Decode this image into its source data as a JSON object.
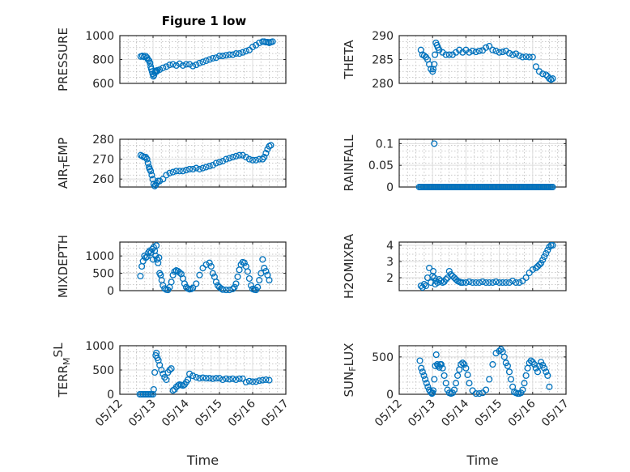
{
  "figure": {
    "title": "Figure 1 low",
    "marker_color": "#0072BD",
    "x_tick_labels": [
      "05/12",
      "05/13",
      "05/14",
      "05/15",
      "05/16",
      "05/17"
    ]
  },
  "chart_data": [
    {
      "type": "scatter",
      "id": "pressure",
      "title": "Figure 1 low",
      "ylabel": "PRESSURE",
      "ylabel_parts": [
        {
          "t": "PRESSURE"
        }
      ],
      "xlabel": "",
      "ylim": [
        600,
        1000
      ],
      "yticks": [
        600,
        800,
        1000
      ],
      "x_domain": [
        0,
        5
      ],
      "x": [
        0.63,
        0.68,
        0.73,
        0.78,
        0.82,
        0.85,
        0.88,
        0.91,
        0.93,
        0.95,
        0.97,
        0.99,
        1.01,
        1.03,
        1.05,
        1.07,
        1.09,
        1.11,
        1.13,
        1.2,
        1.3,
        1.4,
        1.5,
        1.6,
        1.7,
        1.8,
        1.9,
        2.0,
        2.1,
        2.2,
        2.3,
        2.4,
        2.5,
        2.6,
        2.7,
        2.8,
        2.9,
        3.0,
        3.1,
        3.2,
        3.3,
        3.4,
        3.5,
        3.6,
        3.7,
        3.8,
        3.9,
        4.0,
        4.1,
        4.2,
        4.3,
        4.35,
        4.4,
        4.45,
        4.5,
        4.55,
        4.6
      ],
      "y": [
        825,
        830,
        822,
        828,
        815,
        800,
        790,
        770,
        740,
        720,
        700,
        680,
        660,
        670,
        690,
        700,
        705,
        700,
        710,
        715,
        730,
        740,
        755,
        760,
        750,
        765,
        750,
        760,
        760,
        745,
        755,
        770,
        780,
        790,
        800,
        810,
        815,
        830,
        830,
        835,
        840,
        840,
        850,
        850,
        860,
        870,
        880,
        905,
        920,
        940,
        950,
        950,
        945,
        945,
        940,
        945,
        950
      ]
    },
    {
      "type": "scatter",
      "id": "theta",
      "ylabel": "THETA",
      "ylabel_parts": [
        {
          "t": "THETA"
        }
      ],
      "xlabel": "",
      "ylim": [
        280,
        290
      ],
      "yticks": [
        280,
        285,
        290
      ],
      "x_domain": [
        0,
        5
      ],
      "x": [
        0.65,
        0.7,
        0.75,
        0.8,
        0.85,
        0.9,
        0.95,
        1.0,
        1.02,
        1.05,
        1.07,
        1.1,
        1.13,
        1.16,
        1.2,
        1.3,
        1.4,
        1.5,
        1.6,
        1.7,
        1.8,
        1.9,
        2.0,
        2.1,
        2.2,
        2.3,
        2.4,
        2.5,
        2.6,
        2.7,
        2.8,
        2.9,
        3.0,
        3.1,
        3.2,
        3.3,
        3.4,
        3.5,
        3.6,
        3.7,
        3.8,
        3.9,
        4.0,
        4.1,
        4.2,
        4.3,
        4.4,
        4.45,
        4.5,
        4.55,
        4.6
      ],
      "y": [
        287,
        286,
        285.8,
        285.5,
        285,
        284,
        283,
        282.5,
        283,
        284,
        286,
        288.5,
        288,
        287.5,
        287,
        286.5,
        286,
        286,
        286,
        286.5,
        287,
        286.5,
        287,
        286.5,
        286.8,
        286.6,
        286.8,
        286.9,
        287.5,
        287.8,
        287,
        286.8,
        286.5,
        286.6,
        286.8,
        286.3,
        286,
        286.2,
        285.8,
        285.5,
        285.6,
        285.5,
        285.5,
        283.5,
        282.5,
        282,
        281.8,
        281.5,
        281,
        280.8,
        281
      ]
    },
    {
      "type": "scatter",
      "id": "air_temp",
      "ylabel": "AIR_TEMP",
      "ylabel_parts": [
        {
          "t": "AIR"
        },
        {
          "t": "T",
          "sub": true
        },
        {
          "t": "EMP"
        }
      ],
      "xlabel": "",
      "ylim": [
        256,
        280
      ],
      "yticks": [
        260,
        270,
        280
      ],
      "x_domain": [
        0,
        5
      ],
      "x": [
        0.63,
        0.68,
        0.73,
        0.78,
        0.82,
        0.85,
        0.88,
        0.9,
        0.93,
        0.96,
        0.99,
        1.02,
        1.05,
        1.08,
        1.11,
        1.15,
        1.2,
        1.3,
        1.4,
        1.5,
        1.6,
        1.7,
        1.8,
        1.9,
        2.0,
        2.1,
        2.2,
        2.3,
        2.4,
        2.5,
        2.6,
        2.7,
        2.8,
        2.9,
        3.0,
        3.1,
        3.2,
        3.3,
        3.4,
        3.5,
        3.6,
        3.7,
        3.8,
        3.9,
        4.0,
        4.1,
        4.2,
        4.3,
        4.35,
        4.4,
        4.45,
        4.5,
        4.55
      ],
      "y": [
        272,
        271.5,
        271,
        271,
        270,
        268,
        266,
        265,
        264,
        262,
        260,
        257.5,
        256.5,
        257,
        258,
        259,
        259,
        260,
        262,
        263,
        263.5,
        264,
        264,
        264,
        264.5,
        265,
        265,
        265.5,
        265,
        265.5,
        266,
        266.5,
        267,
        268,
        268.5,
        269,
        270,
        270.5,
        271,
        271.5,
        272,
        272,
        271,
        270,
        269.5,
        269.5,
        270,
        270,
        271,
        273,
        275,
        276.5,
        277
      ]
    },
    {
      "type": "scatter",
      "id": "rainfall",
      "ylabel": "RAINFALL",
      "ylabel_parts": [
        {
          "t": "RAINFALL"
        }
      ],
      "xlabel": "",
      "ylim": [
        0,
        0.11
      ],
      "yticks": [
        0,
        0.05,
        0.1
      ],
      "x_domain": [
        0,
        5
      ],
      "x": [
        0.6,
        0.64,
        0.68,
        0.72,
        0.76,
        0.8,
        0.84,
        0.88,
        0.92,
        0.96,
        1.0,
        1.04,
        1.08,
        1.12,
        1.16,
        1.2,
        1.24,
        1.28,
        1.32,
        1.36,
        1.4,
        1.44,
        1.48,
        1.52,
        1.56,
        1.6,
        1.64,
        1.68,
        1.72,
        1.76,
        1.8,
        1.84,
        1.88,
        1.92,
        1.96,
        2.0,
        2.04,
        2.08,
        2.12,
        2.16,
        2.2,
        2.24,
        2.28,
        2.32,
        2.36,
        2.4,
        2.44,
        2.48,
        2.52,
        2.56,
        2.6,
        2.64,
        2.68,
        2.72,
        2.76,
        2.8,
        2.84,
        2.88,
        2.92,
        2.96,
        3.0,
        3.04,
        3.08,
        3.12,
        3.16,
        3.2,
        3.24,
        3.28,
        3.32,
        3.36,
        3.4,
        3.44,
        3.48,
        3.52,
        3.56,
        3.6,
        3.64,
        3.68,
        3.72,
        3.76,
        3.8,
        3.84,
        3.88,
        3.92,
        3.96,
        4.0,
        4.04,
        4.08,
        4.12,
        4.16,
        4.2,
        4.24,
        4.28,
        4.32,
        4.36,
        4.4,
        4.44,
        4.48,
        4.52,
        4.56,
        4.6,
        1.05
      ],
      "y": [
        0,
        0,
        0,
        0,
        0,
        0,
        0,
        0,
        0,
        0,
        0,
        0,
        0,
        0,
        0,
        0,
        0,
        0,
        0,
        0,
        0,
        0,
        0,
        0,
        0,
        0,
        0,
        0,
        0,
        0,
        0,
        0,
        0,
        0,
        0,
        0,
        0,
        0,
        0,
        0,
        0,
        0,
        0,
        0,
        0,
        0,
        0,
        0,
        0,
        0,
        0,
        0,
        0,
        0,
        0,
        0,
        0,
        0,
        0,
        0,
        0,
        0,
        0,
        0,
        0,
        0,
        0,
        0,
        0,
        0,
        0,
        0,
        0,
        0,
        0,
        0,
        0,
        0,
        0,
        0,
        0,
        0,
        0,
        0,
        0,
        0,
        0,
        0,
        0,
        0,
        0,
        0,
        0,
        0,
        0,
        0,
        0,
        0,
        0,
        0,
        0,
        0.1
      ]
    },
    {
      "type": "scatter",
      "id": "mixdepth",
      "ylabel": "MIXDEPTH",
      "ylabel_parts": [
        {
          "t": "MIXDEPTH"
        }
      ],
      "xlabel": "",
      "ylim": [
        0,
        1400
      ],
      "yticks": [
        0,
        500,
        1000
      ],
      "x_domain": [
        0,
        5
      ],
      "x": [
        0.62,
        0.66,
        0.7,
        0.74,
        0.78,
        0.82,
        0.86,
        0.9,
        0.94,
        0.98,
        1.0,
        1.02,
        1.05,
        1.08,
        1.1,
        1.12,
        1.15,
        1.18,
        1.2,
        1.23,
        1.26,
        1.3,
        1.35,
        1.4,
        1.45,
        1.5,
        1.55,
        1.6,
        1.65,
        1.7,
        1.75,
        1.8,
        1.85,
        1.9,
        1.95,
        2.0,
        2.05,
        2.1,
        2.15,
        2.2,
        2.3,
        2.4,
        2.5,
        2.6,
        2.7,
        2.75,
        2.8,
        2.85,
        2.9,
        2.95,
        3.0,
        3.05,
        3.1,
        3.2,
        3.3,
        3.4,
        3.45,
        3.5,
        3.55,
        3.6,
        3.65,
        3.7,
        3.75,
        3.8,
        3.85,
        3.9,
        3.95,
        4.0,
        4.05,
        4.1,
        4.15,
        4.2,
        4.25,
        4.3,
        4.35,
        4.4,
        4.45,
        4.5
      ],
      "y": [
        420,
        700,
        850,
        1000,
        950,
        980,
        1100,
        1150,
        1100,
        1200,
        900,
        1250,
        1150,
        1000,
        1300,
        900,
        800,
        950,
        500,
        450,
        300,
        150,
        60,
        30,
        20,
        100,
        250,
        450,
        550,
        580,
        560,
        520,
        480,
        350,
        200,
        100,
        60,
        40,
        50,
        80,
        200,
        450,
        650,
        750,
        800,
        700,
        500,
        400,
        250,
        150,
        100,
        60,
        30,
        20,
        20,
        50,
        100,
        200,
        400,
        600,
        750,
        820,
        800,
        700,
        550,
        350,
        150,
        50,
        30,
        20,
        100,
        300,
        500,
        900,
        650,
        560,
        450,
        300
      ]
    },
    {
      "type": "scatter",
      "id": "h2omixra",
      "ylabel": "H2OMIXRA",
      "ylabel_parts": [
        {
          "t": "H2OMIXRA"
        }
      ],
      "xlabel": "",
      "ylim": [
        1.2,
        4.2
      ],
      "yticks": [
        2,
        3,
        4
      ],
      "x_domain": [
        0,
        5
      ],
      "x": [
        0.65,
        0.7,
        0.75,
        0.8,
        0.85,
        0.9,
        0.95,
        1.0,
        1.02,
        1.05,
        1.08,
        1.1,
        1.15,
        1.2,
        1.25,
        1.3,
        1.35,
        1.4,
        1.45,
        1.5,
        1.55,
        1.6,
        1.65,
        1.7,
        1.75,
        1.8,
        1.85,
        1.9,
        2.0,
        2.1,
        2.2,
        2.3,
        2.4,
        2.5,
        2.6,
        2.7,
        2.8,
        2.9,
        3.0,
        3.1,
        3.2,
        3.3,
        3.4,
        3.5,
        3.6,
        3.7,
        3.8,
        3.9,
        4.0,
        4.1,
        4.15,
        4.2,
        4.25,
        4.3,
        4.35,
        4.4,
        4.45,
        4.5,
        4.55,
        4.6
      ],
      "y": [
        1.5,
        1.4,
        1.6,
        1.5,
        2.0,
        2.6,
        1.7,
        2.1,
        2.4,
        2.0,
        1.6,
        1.8,
        1.7,
        1.9,
        1.8,
        1.7,
        1.75,
        1.9,
        2.0,
        2.4,
        2.2,
        2.1,
        2.0,
        1.9,
        1.8,
        1.75,
        1.7,
        1.7,
        1.7,
        1.75,
        1.7,
        1.7,
        1.7,
        1.75,
        1.7,
        1.7,
        1.7,
        1.75,
        1.7,
        1.7,
        1.7,
        1.7,
        1.8,
        1.7,
        1.7,
        1.8,
        2.0,
        2.3,
        2.5,
        2.6,
        2.7,
        2.8,
        2.9,
        3.1,
        3.3,
        3.5,
        3.7,
        3.9,
        4.0,
        4.0
      ]
    },
    {
      "type": "scatter",
      "id": "terr_msl",
      "ylabel": "TERR_MSL",
      "ylabel_parts": [
        {
          "t": "TERR"
        },
        {
          "t": "M",
          "sub": true
        },
        {
          "t": "SL",
          "sup": true
        }
      ],
      "xlabel": "Time",
      "ylim": [
        0,
        1000
      ],
      "yticks": [
        0,
        500,
        1000
      ],
      "x_domain": [
        0,
        5
      ],
      "x": [
        0.6,
        0.65,
        0.7,
        0.75,
        0.8,
        0.85,
        0.9,
        0.95,
        1.0,
        1.02,
        1.05,
        1.08,
        1.1,
        1.13,
        1.16,
        1.2,
        1.25,
        1.3,
        1.35,
        1.4,
        1.45,
        1.5,
        1.55,
        1.6,
        1.65,
        1.7,
        1.75,
        1.8,
        1.85,
        1.9,
        1.95,
        2.0,
        2.05,
        2.1,
        2.2,
        2.3,
        2.4,
        2.5,
        2.6,
        2.7,
        2.8,
        2.9,
        3.0,
        3.1,
        3.2,
        3.3,
        3.4,
        3.5,
        3.6,
        3.7,
        3.8,
        3.9,
        4.0,
        4.1,
        4.2,
        4.3,
        4.4,
        4.5
      ],
      "y": [
        0,
        0,
        0,
        0,
        0,
        0,
        0,
        0,
        0,
        100,
        450,
        800,
        850,
        750,
        700,
        600,
        500,
        420,
        350,
        300,
        450,
        500,
        530,
        80,
        100,
        150,
        180,
        200,
        190,
        180,
        200,
        250,
        300,
        420,
        380,
        350,
        330,
        340,
        330,
        330,
        320,
        330,
        330,
        300,
        320,
        310,
        320,
        300,
        320,
        320,
        250,
        270,
        260,
        260,
        280,
        290,
        300,
        290
      ]
    },
    {
      "type": "scatter",
      "id": "sun_flux",
      "ylabel": "SUN_FLUX",
      "ylabel_parts": [
        {
          "t": "SUN"
        },
        {
          "t": "F",
          "sub": true
        },
        {
          "t": "LUX"
        }
      ],
      "xlabel": "Time",
      "ylim": [
        0,
        650
      ],
      "yticks": [
        0,
        500
      ],
      "x_domain": [
        0,
        5
      ],
      "x": [
        0.62,
        0.66,
        0.7,
        0.74,
        0.78,
        0.82,
        0.86,
        0.9,
        0.94,
        0.98,
        1.0,
        1.02,
        1.05,
        1.08,
        1.11,
        1.14,
        1.17,
        1.2,
        1.23,
        1.26,
        1.3,
        1.35,
        1.4,
        1.45,
        1.5,
        1.55,
        1.6,
        1.65,
        1.7,
        1.75,
        1.8,
        1.85,
        1.9,
        1.95,
        2.0,
        2.05,
        2.1,
        2.2,
        2.3,
        2.4,
        2.5,
        2.6,
        2.7,
        2.8,
        2.9,
        3.0,
        3.05,
        3.1,
        3.15,
        3.2,
        3.25,
        3.3,
        3.35,
        3.4,
        3.45,
        3.5,
        3.55,
        3.6,
        3.65,
        3.7,
        3.75,
        3.8,
        3.85,
        3.9,
        3.95,
        4.0,
        4.05,
        4.1,
        4.15,
        4.2,
        4.25,
        4.3,
        4.35,
        4.4,
        4.45,
        4.5
      ],
      "y": [
        450,
        350,
        300,
        250,
        200,
        150,
        100,
        60,
        30,
        10,
        20,
        50,
        200,
        380,
        530,
        400,
        380,
        360,
        400,
        400,
        350,
        250,
        150,
        60,
        20,
        10,
        20,
        60,
        150,
        250,
        330,
        400,
        420,
        400,
        350,
        260,
        150,
        50,
        10,
        10,
        20,
        60,
        200,
        400,
        550,
        580,
        600,
        570,
        500,
        420,
        380,
        300,
        200,
        100,
        30,
        20,
        10,
        10,
        20,
        60,
        150,
        250,
        350,
        420,
        450,
        430,
        400,
        350,
        300,
        380,
        430,
        390,
        350,
        300,
        250,
        100
      ]
    }
  ]
}
